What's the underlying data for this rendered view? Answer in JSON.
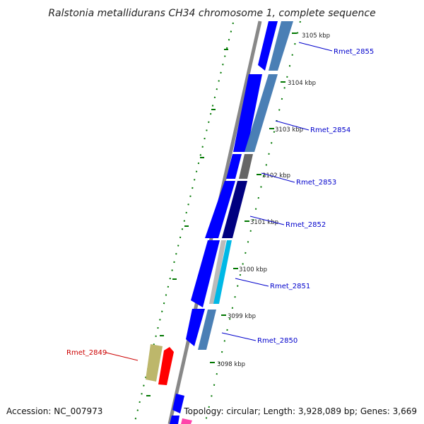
{
  "title": "Ralstonia metallidurans CH34 chromosome 1, complete sequence",
  "accession": "Accession: NC_007973",
  "summary": "Topology: circular; Length: 3,928,089 bp; Genes: 3,669",
  "ticks": [
    {
      "label": "3105 kbp"
    },
    {
      "label": "3104 kbp"
    },
    {
      "label": "3103 kbp"
    },
    {
      "label": "3102 kbp"
    },
    {
      "label": "3101 kbp"
    },
    {
      "label": "3100 kbp"
    },
    {
      "label": "3099 kbp"
    },
    {
      "label": "3098 kbp"
    }
  ],
  "genes": [
    {
      "label": "Rmet_2855",
      "color": "#0000cc"
    },
    {
      "label": "Rmet_2854",
      "color": "#0000cc"
    },
    {
      "label": "Rmet_2853",
      "color": "#0000cc"
    },
    {
      "label": "Rmet_2852",
      "color": "#0000cc"
    },
    {
      "label": "Rmet_2851",
      "color": "#0000cc"
    },
    {
      "label": "Rmet_2850",
      "color": "#0000cc"
    },
    {
      "label": "Rmet_2849",
      "color": "#cc0000"
    }
  ],
  "colors": {
    "backbone": "#888888",
    "forward_cds": "#0000ff",
    "feature_steelblue": "#4a7fb5",
    "feature_gray": "#666666",
    "feature_navy": "#000080",
    "feature_lightgray": "#bbbbbb",
    "feature_cyan": "#00b8e6",
    "feature_khaki": "#bdb76b",
    "feature_red": "#ff0000",
    "feature_magenta": "#ff44aa",
    "tick_green": "#007700"
  }
}
